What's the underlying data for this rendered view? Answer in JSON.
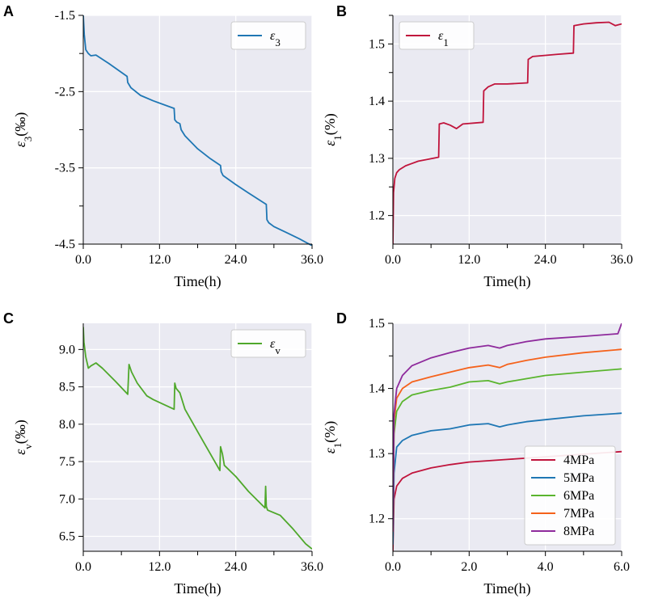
{
  "chart_data": [
    {
      "panel": "A",
      "type": "line",
      "xlabel": "Time(h)",
      "ylabel": "ε3(‰)",
      "ylabel_main": "ε",
      "ylabel_sub": "3",
      "ylabel_unit": "(‰)",
      "xlim": [
        0,
        36
      ],
      "ylim": [
        -4.5,
        -1.5
      ],
      "xticks": [
        0,
        12,
        24,
        36
      ],
      "xtick_labels": [
        "0.0",
        "12.0",
        "24.0",
        "36.0"
      ],
      "yticks": [
        -1.5,
        -2.5,
        -3.5,
        -4.5
      ],
      "ytick_labels": [
        "-1.5",
        "-2.5",
        "-3.5",
        "-4.5"
      ],
      "minor_xticks": [
        6,
        18,
        30
      ],
      "minor_yticks": [
        -2.0,
        -3.0,
        -4.0
      ],
      "legend": "top-right",
      "series": [
        {
          "name": "ε3",
          "name_main": "ε",
          "name_sub": "3",
          "color": "#1f77b4",
          "x": [
            0,
            0.15,
            0.4,
            0.8,
            1.2,
            2.0,
            4.0,
            6.9,
            7.0,
            7.5,
            9.0,
            11.0,
            14.3,
            14.4,
            14.7,
            15.2,
            15.4,
            16.0,
            18.0,
            20.0,
            21.6,
            21.7,
            22.0,
            24.0,
            26.0,
            28.8,
            28.9,
            29.2,
            30.0,
            32.0,
            34.0,
            36.0
          ],
          "y": [
            -1.5,
            -1.75,
            -1.95,
            -2.0,
            -2.03,
            -2.02,
            -2.13,
            -2.3,
            -2.38,
            -2.45,
            -2.55,
            -2.62,
            -2.72,
            -2.87,
            -2.9,
            -2.92,
            -3.0,
            -3.08,
            -3.25,
            -3.38,
            -3.47,
            -3.55,
            -3.6,
            -3.72,
            -3.83,
            -3.98,
            -4.18,
            -4.22,
            -4.27,
            -4.35,
            -4.43,
            -4.52
          ]
        }
      ]
    },
    {
      "panel": "B",
      "type": "line",
      "xlabel": "Time(h)",
      "ylabel": "ε1(%)",
      "ylabel_main": "ε",
      "ylabel_sub": "1",
      "ylabel_unit": "(%)",
      "xlim": [
        0,
        36
      ],
      "ylim": [
        1.15,
        1.55
      ],
      "xticks": [
        0,
        12,
        24,
        36
      ],
      "xtick_labels": [
        "0.0",
        "12.0",
        "24.0",
        "36.0"
      ],
      "yticks": [
        1.2,
        1.3,
        1.4,
        1.5
      ],
      "ytick_labels": [
        "1.2",
        "1.3",
        "1.4",
        "1.5"
      ],
      "minor_xticks": [
        6,
        18,
        30
      ],
      "minor_yticks": [
        1.25,
        1.35,
        1.45,
        1.55
      ],
      "legend": "top-left",
      "series": [
        {
          "name": "ε1",
          "name_main": "ε",
          "name_sub": "1",
          "color": "#c0143c",
          "x": [
            0,
            0.1,
            0.3,
            0.6,
            1.0,
            2.0,
            4.0,
            7.2,
            7.3,
            8.0,
            9.0,
            10.0,
            11.0,
            14.2,
            14.3,
            15.0,
            16.0,
            18.0,
            21.2,
            21.3,
            22.0,
            24.0,
            26.0,
            28.4,
            28.5,
            30.0,
            32.0,
            34.0,
            35.0,
            36.0
          ],
          "y": [
            1.15,
            1.24,
            1.265,
            1.275,
            1.28,
            1.287,
            1.295,
            1.302,
            1.36,
            1.362,
            1.358,
            1.352,
            1.36,
            1.363,
            1.418,
            1.425,
            1.43,
            1.43,
            1.432,
            1.473,
            1.478,
            1.48,
            1.482,
            1.484,
            1.532,
            1.535,
            1.537,
            1.538,
            1.532,
            1.535
          ]
        }
      ]
    },
    {
      "panel": "C",
      "type": "line",
      "xlabel": "Time(h)",
      "ylabel": "εv(‰)",
      "ylabel_main": "ε",
      "ylabel_sub": "v",
      "ylabel_unit": "(‰)",
      "xlim": [
        0,
        36
      ],
      "ylim": [
        6.3,
        9.35
      ],
      "xticks": [
        0,
        12,
        24,
        36
      ],
      "xtick_labels": [
        "0.0",
        "12.0",
        "24.0",
        "36.0"
      ],
      "yticks": [
        6.5,
        7.0,
        7.5,
        8.0,
        8.5,
        9.0
      ],
      "ytick_labels": [
        "6.5",
        "7.0",
        "7.5",
        "8.0",
        "8.5",
        "9.0"
      ],
      "minor_xticks": [
        6,
        18,
        30
      ],
      "minor_yticks": [],
      "legend": "top-right",
      "series": [
        {
          "name": "εv",
          "name_main": "ε",
          "name_sub": "v",
          "color": "#4fa82b",
          "x": [
            0,
            0.1,
            0.4,
            0.8,
            1.2,
            2.0,
            3.0,
            5.0,
            7.0,
            7.2,
            7.6,
            8.5,
            10.0,
            11.0,
            14.3,
            14.4,
            14.6,
            15.2,
            16.0,
            18.0,
            21.5,
            21.6,
            21.9,
            22.2,
            24.0,
            26.0,
            28.6,
            28.7,
            28.8,
            29.0,
            31.0,
            33.0,
            35.0,
            36.0
          ],
          "y": [
            9.3,
            9.1,
            8.9,
            8.75,
            8.78,
            8.82,
            8.75,
            8.58,
            8.4,
            8.8,
            8.7,
            8.55,
            8.38,
            8.33,
            8.2,
            8.55,
            8.48,
            8.42,
            8.2,
            7.9,
            7.38,
            7.7,
            7.6,
            7.45,
            7.3,
            7.1,
            6.88,
            7.17,
            6.9,
            6.85,
            6.78,
            6.6,
            6.4,
            6.33
          ]
        }
      ]
    },
    {
      "panel": "D",
      "type": "line",
      "xlabel": "Time(h)",
      "ylabel": "ε1(%)",
      "ylabel_main": "ε",
      "ylabel_sub": "1",
      "ylabel_unit": "(%)",
      "xlim": [
        0,
        6
      ],
      "ylim": [
        1.15,
        1.5
      ],
      "xticks": [
        0,
        2,
        4,
        6
      ],
      "xtick_labels": [
        "0.0",
        "2.0",
        "4.0",
        "6.0"
      ],
      "yticks": [
        1.2,
        1.3,
        1.4,
        1.5
      ],
      "ytick_labels": [
        "1.2",
        "1.3",
        "1.4",
        "1.5"
      ],
      "minor_xticks": [
        1,
        3,
        5
      ],
      "minor_yticks": [
        1.25,
        1.35,
        1.45
      ],
      "legend": "bottom-right",
      "series": [
        {
          "name": "4MPa",
          "color": "#c0143c",
          "x": [
            0,
            0.03,
            0.1,
            0.25,
            0.5,
            1.0,
            1.5,
            2.0,
            3.0,
            4.0,
            5.0,
            6.0
          ],
          "y": [
            1.15,
            1.23,
            1.25,
            1.262,
            1.27,
            1.278,
            1.283,
            1.287,
            1.291,
            1.295,
            1.299,
            1.303
          ]
        },
        {
          "name": "5MPa",
          "color": "#1f77b4",
          "x": [
            0,
            0.03,
            0.1,
            0.25,
            0.5,
            1.0,
            1.5,
            2.0,
            2.5,
            2.8,
            3.0,
            3.5,
            4.0,
            5.0,
            6.0
          ],
          "y": [
            1.16,
            1.27,
            1.31,
            1.32,
            1.328,
            1.335,
            1.338,
            1.344,
            1.346,
            1.341,
            1.344,
            1.349,
            1.352,
            1.358,
            1.362
          ]
        },
        {
          "name": "6MPa",
          "color": "#5ab52e",
          "x": [
            0,
            0.03,
            0.1,
            0.25,
            0.5,
            1.0,
            1.5,
            2.0,
            2.5,
            2.8,
            3.0,
            3.5,
            4.0,
            5.0,
            6.0
          ],
          "y": [
            1.18,
            1.33,
            1.365,
            1.38,
            1.39,
            1.397,
            1.402,
            1.41,
            1.412,
            1.407,
            1.41,
            1.415,
            1.42,
            1.425,
            1.43
          ]
        },
        {
          "name": "7MPa",
          "color": "#f5621b",
          "x": [
            0,
            0.03,
            0.1,
            0.25,
            0.5,
            1.0,
            1.5,
            2.0,
            2.5,
            2.8,
            3.0,
            3.5,
            4.0,
            5.0,
            6.0
          ],
          "y": [
            1.18,
            1.35,
            1.385,
            1.4,
            1.41,
            1.418,
            1.425,
            1.432,
            1.436,
            1.432,
            1.437,
            1.443,
            1.448,
            1.455,
            1.46
          ]
        },
        {
          "name": "8MPa",
          "color": "#8e2a9c",
          "x": [
            0,
            0.03,
            0.1,
            0.25,
            0.5,
            1.0,
            1.5,
            2.0,
            2.5,
            2.8,
            3.0,
            3.5,
            4.0,
            5.0,
            5.9,
            6.0
          ],
          "y": [
            1.18,
            1.36,
            1.4,
            1.42,
            1.435,
            1.447,
            1.455,
            1.462,
            1.466,
            1.462,
            1.466,
            1.472,
            1.476,
            1.48,
            1.484,
            1.5
          ]
        }
      ]
    }
  ]
}
